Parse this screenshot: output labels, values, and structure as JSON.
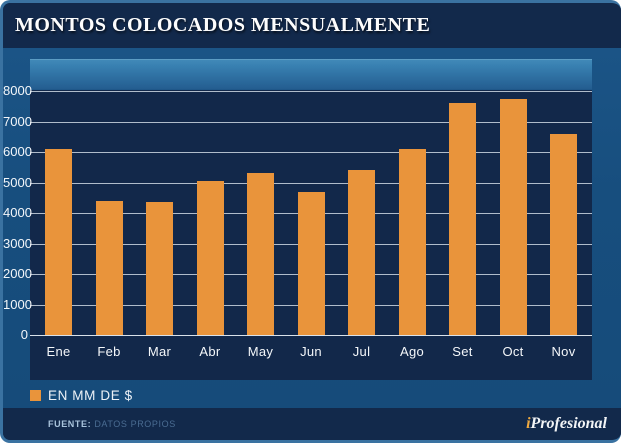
{
  "header": {
    "title": "MONTOS COLOCADOS MENSUALMENTE"
  },
  "chart_data": {
    "type": "bar",
    "title": "MONTOS COLOCADOS MENSUALMENTE",
    "categories": [
      "Ene",
      "Feb",
      "Mar",
      "Abr",
      "May",
      "Jun",
      "Jul",
      "Ago",
      "Set",
      "Oct",
      "Nov"
    ],
    "values": [
      6100,
      4400,
      4350,
      5050,
      5300,
      4700,
      5400,
      6100,
      7600,
      7750,
      6600
    ],
    "xlabel": "",
    "ylabel": "",
    "ylim": [
      0,
      8000
    ],
    "ytick_interval": 1000,
    "yticks": [
      0,
      1000,
      2000,
      3000,
      4000,
      5000,
      6000,
      7000,
      8000
    ],
    "grid": true,
    "legend_label": "EN MM DE $",
    "legend_position": "bottom-left",
    "bar_color": "#E9943B"
  },
  "legend": {
    "label": "EN MM DE $"
  },
  "footer": {
    "source_label": "FUENTE:",
    "source_value": "DATOS PROPIOS",
    "brand_i": "i",
    "brand_rest": "Profesional"
  },
  "colors": {
    "accent_orange": "#E9943B",
    "navy": "#12294B",
    "plot_navy": "#12284A",
    "container_blue": "#174E7E",
    "gloss_top": "#4189B8",
    "gloss_bottom": "#245E91",
    "gridline": "#CDD6E2",
    "text_white": "#F4F7FA",
    "source_value_blue": "#4A6C92",
    "border_light_blue": "#3A72A1"
  }
}
